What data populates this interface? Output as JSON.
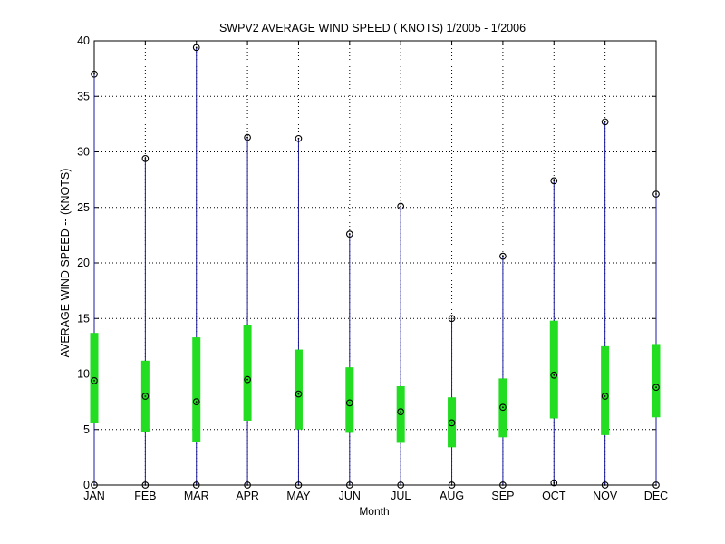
{
  "chart_data": {
    "type": "box",
    "title": "SWPV2  AVERAGE WIND SPEED ( KNOTS) 1/2005 - 1/2006",
    "xlabel": "Month",
    "ylabel": "AVERAGE WIND SPEED -- (KNOTS)",
    "categories": [
      "JAN",
      "FEB",
      "MAR",
      "APR",
      "MAY",
      "JUN",
      "JUL",
      "AUG",
      "SEP",
      "OCT",
      "NOV",
      "DEC"
    ],
    "ylim": [
      0,
      40
    ],
    "yticks": [
      "0",
      "5",
      "10",
      "15",
      "20",
      "25",
      "30",
      "35",
      "40"
    ],
    "grid": true,
    "series": [
      {
        "min": 0,
        "q1": 5.6,
        "mean": 9.4,
        "q3": 13.7,
        "max": 37.0
      },
      {
        "min": 0,
        "q1": 4.8,
        "mean": 8.0,
        "q3": 11.2,
        "max": 29.4
      },
      {
        "min": 0,
        "q1": 3.9,
        "mean": 7.5,
        "q3": 13.3,
        "max": 39.4
      },
      {
        "min": 0,
        "q1": 5.8,
        "mean": 9.5,
        "q3": 14.4,
        "max": 31.3
      },
      {
        "min": 0,
        "q1": 5.0,
        "mean": 8.2,
        "q3": 12.2,
        "max": 31.2
      },
      {
        "min": 0,
        "q1": 4.7,
        "mean": 7.4,
        "q3": 10.6,
        "max": 22.6
      },
      {
        "min": 0,
        "q1": 3.8,
        "mean": 6.6,
        "q3": 8.9,
        "max": 25.1
      },
      {
        "min": 0,
        "q1": 3.4,
        "mean": 5.6,
        "q3": 7.9,
        "max": 15.0
      },
      {
        "min": 0,
        "q1": 4.3,
        "mean": 7.0,
        "q3": 9.6,
        "max": 20.6
      },
      {
        "min": 0.2,
        "q1": 6.0,
        "mean": 9.9,
        "q3": 14.8,
        "max": 27.4
      },
      {
        "min": 0,
        "q1": 4.5,
        "mean": 8.0,
        "q3": 12.5,
        "max": 32.7
      },
      {
        "min": 0,
        "q1": 6.1,
        "mean": 8.8,
        "q3": 12.7,
        "max": 26.2
      }
    ],
    "colors": {
      "whisker": "#1a1aa0",
      "box": "#22dd22",
      "marker": "#000000",
      "grid": "#000000",
      "axis": "#000000"
    }
  }
}
